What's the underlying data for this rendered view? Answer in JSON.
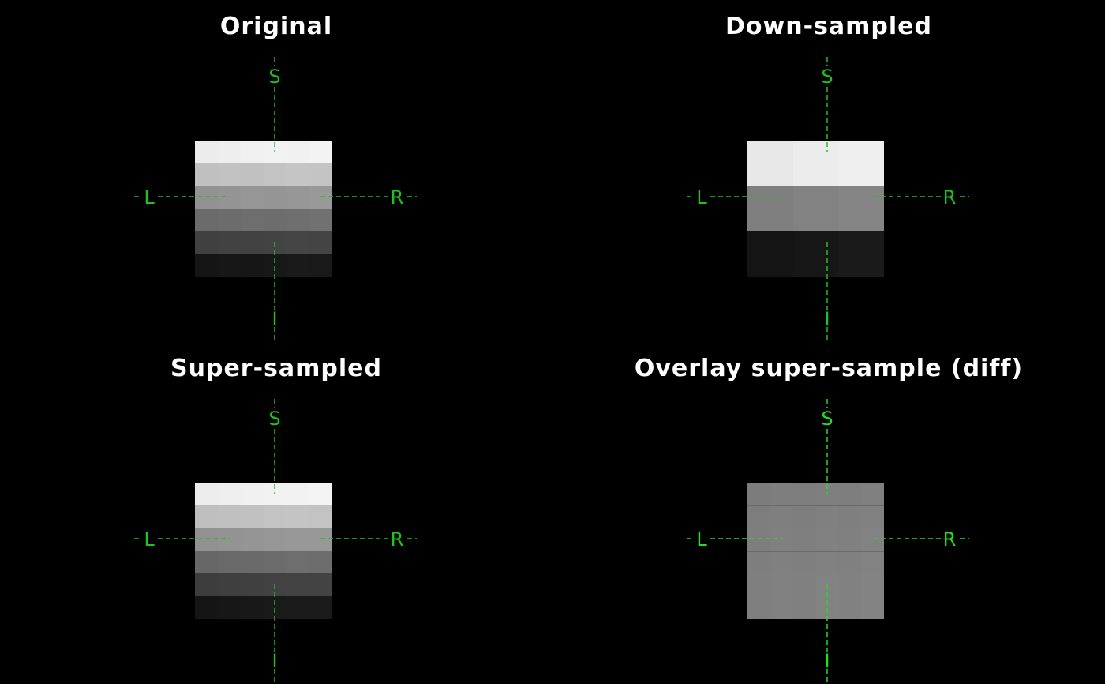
{
  "colors": {
    "background": "#000000",
    "title_text": "#ffffff",
    "crosshair": "#1fc21f",
    "crosshair_bright": "#22dd22"
  },
  "orientation_labels": {
    "superior": "S",
    "inferior": "I",
    "left": "L",
    "right": "R"
  },
  "panels": [
    {
      "title": "Original",
      "image": {
        "rows": [
          [
            "#ececec",
            "#eeeeee",
            "#f0f0f0",
            "#f2f2f2",
            "#f1f1f1",
            "#f3f3f3"
          ],
          [
            "#c0c0c0",
            "#c2c2c2",
            "#c1c1c1",
            "#c3c3c3",
            "#c5c5c5",
            "#c4c4c4"
          ],
          [
            "#929292",
            "#949494",
            "#969696",
            "#959595",
            "#979797",
            "#999999"
          ],
          [
            "#6b6b6b",
            "#6c6c6c",
            "#6e6e6e",
            "#6d6d6d",
            "#6f6f6f",
            "#717171"
          ],
          [
            "#404040",
            "#424242",
            "#414141",
            "#434343",
            "#454545",
            "#444444"
          ],
          [
            "#151515",
            "#171717",
            "#161616",
            "#181818",
            "#1a1a1a",
            "#191919"
          ]
        ]
      }
    },
    {
      "title": "Down-sampled",
      "image": {
        "rows": [
          [
            "#e8e8e8",
            "#ececec",
            "#efefef"
          ],
          [
            "#7f7f7f",
            "#828282",
            "#858585"
          ],
          [
            "#141414",
            "#171717",
            "#1a1a1a"
          ]
        ]
      }
    },
    {
      "title": "Super-sampled",
      "image": {
        "rows": [
          [
            "#ededed",
            "#efefef",
            "#f1f1f1",
            "#f2f2f2",
            "#f2f2f2",
            "#f4f4f4"
          ],
          [
            "#bebebe",
            "#c0c0c0",
            "#c1c1c1",
            "#c3c3c3",
            "#c4c4c4",
            "#c3c3c3"
          ],
          [
            "#919191",
            "#939393",
            "#959595",
            "#969696",
            "#989898",
            "#989898"
          ],
          [
            "#676767",
            "#696969",
            "#6a6a6a",
            "#6c6c6c",
            "#6e6e6e",
            "#6d6d6d"
          ],
          [
            "#3d3d3d",
            "#3f3f3f",
            "#404040",
            "#424242",
            "#434343",
            "#434343"
          ],
          [
            "#151515",
            "#171717",
            "#181818",
            "#1a1a1a",
            "#1b1b1b",
            "#1b1b1b"
          ]
        ]
      }
    },
    {
      "title": "Overlay super-sample (diff)",
      "image": {
        "rows": [
          [
            "#7c7c7c",
            "#7e7e7e",
            "#7d7d7d",
            "#7f7f7f",
            "#7e7e7e",
            "#808080"
          ],
          [
            "#7d7d7d",
            "#7f7f7f",
            "#7e7e7e",
            "#808080",
            "#7f7f7f",
            "#818181"
          ],
          [
            "#7e7e7e",
            "#808080",
            "#7f7f7f",
            "#818181",
            "#808080",
            "#828282"
          ],
          [
            "#7e7e7e",
            "#808080",
            "#7f7f7f",
            "#818181",
            "#808080",
            "#828282"
          ],
          [
            "#7f7f7f",
            "#818181",
            "#808080",
            "#828282",
            "#818181",
            "#838383"
          ],
          [
            "#7f7f7f",
            "#818181",
            "#808080",
            "#828282",
            "#818181",
            "#838383"
          ]
        ],
        "separator_color": "#6a6a6a"
      }
    }
  ]
}
